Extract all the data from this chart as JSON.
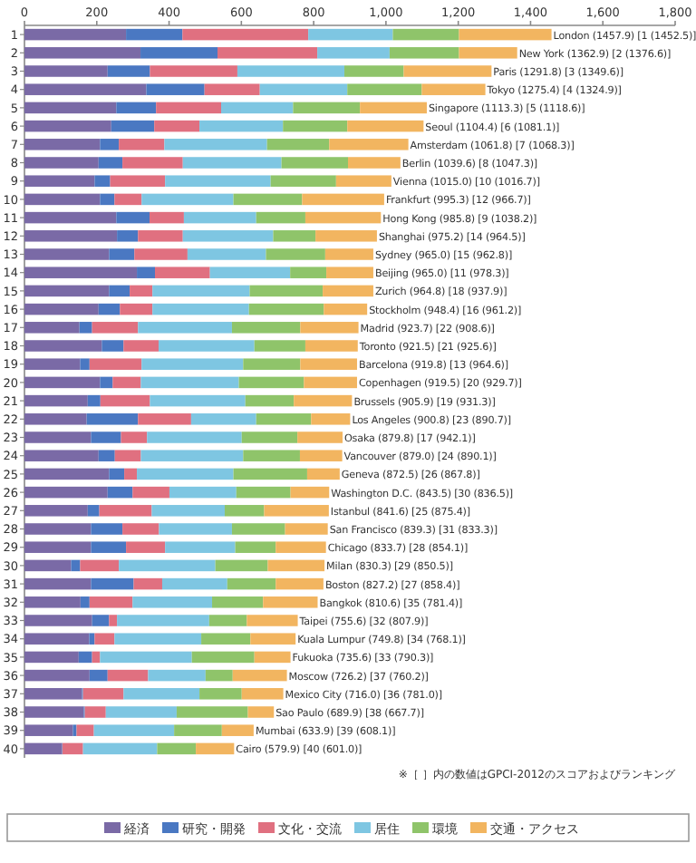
{
  "chart_data": {
    "type": "bar",
    "orientation": "horizontal",
    "stacked": true,
    "categories": [
      "1",
      "2",
      "3",
      "4",
      "5",
      "6",
      "7",
      "8",
      "9",
      "10",
      "11",
      "12",
      "13",
      "14",
      "15",
      "16",
      "17",
      "18",
      "19",
      "20",
      "21",
      "22",
      "23",
      "24",
      "25",
      "26",
      "27",
      "28",
      "29",
      "30",
      "31",
      "32",
      "33",
      "34",
      "35",
      "36",
      "37",
      "38",
      "39",
      "40"
    ],
    "series": [
      {
        "name": "経済",
        "color": "#7a6aa6",
        "values": [
          281,
          321,
          230,
          337,
          254,
          240,
          209,
          205,
          194,
          209,
          254,
          256,
          234,
          311,
          234,
          205,
          152,
          214,
          154,
          209,
          175,
          172,
          184,
          205,
          234,
          230,
          175,
          184,
          184,
          129,
          184,
          155,
          187,
          179,
          150,
          180,
          159,
          164,
          134,
          104
        ]
      },
      {
        "name": "研究・開発",
        "color": "#4a78c2",
        "values": [
          156,
          213,
          117,
          161,
          110,
          119,
          52,
          66,
          43,
          40,
          92,
          58,
          70,
          50,
          57,
          59,
          35,
          60,
          26,
          35,
          35,
          142,
          83,
          45,
          42,
          69,
          32,
          87,
          97,
          25,
          118,
          25,
          47,
          15,
          37,
          50,
          3,
          3,
          10,
          1
        ]
      },
      {
        "name": "文化・交流",
        "color": "#e07080",
        "values": [
          348,
          276,
          242,
          153,
          180,
          125,
          126,
          167,
          152,
          75,
          95,
          124,
          147,
          152,
          63,
          90,
          127,
          97,
          144,
          78,
          137,
          147,
          72,
          72,
          35,
          102,
          145,
          101,
          108,
          107,
          79,
          119,
          22,
          55,
          22,
          112,
          112,
          58,
          48,
          57
        ]
      },
      {
        "name": "居住",
        "color": "#7ec6e2",
        "values": [
          234,
          200,
          296,
          242,
          199,
          231,
          284,
          273,
          292,
          254,
          200,
          250,
          217,
          222,
          269,
          267,
          260,
          265,
          281,
          271,
          264,
          180,
          262,
          283,
          267,
          185,
          202,
          202,
          194,
          267,
          180,
          220,
          255,
          240,
          254,
          159,
          210,
          196,
          222,
          205
        ]
      },
      {
        "name": "環境",
        "color": "#8fc46a",
        "values": [
          183,
          192,
          164,
          206,
          185,
          178,
          172,
          184,
          181,
          190,
          136,
          117,
          164,
          100,
          202,
          207,
          189,
          141,
          158,
          180,
          134,
          152,
          154,
          157,
          204,
          150,
          109,
          147,
          112,
          145,
          134,
          141,
          104,
          136,
          173,
          75,
          117,
          197,
          132,
          107
        ]
      },
      {
        "name": "交通・アクセス",
        "color": "#f2b560",
        "values": [
          256,
          161,
          243,
          176,
          185,
          211,
          219,
          145,
          153,
          227,
          209,
          170,
          133,
          130,
          140,
          120,
          161,
          145,
          157,
          147,
          161,
          108,
          125,
          117,
          90,
          107,
          179,
          118,
          139,
          157,
          132,
          151,
          141,
          125,
          100,
          150,
          115,
          72,
          88,
          106
        ]
      }
    ],
    "totals": [
      "London (1457.9) [1 (1452.5)]",
      "New York (1362.9) [2 (1376.6)]",
      "Paris (1291.8) [3 (1349.6)]",
      "Tokyo (1275.4) [4 (1324.9)]",
      "Singapore (1113.3) [5 (1118.6)]",
      "Seoul (1104.4) [6 (1081.1)]",
      "Amsterdam (1061.8) [7 (1068.3)]",
      "Berlin (1039.6) [8 (1047.3)]",
      "Vienna (1015.0) [10 (1016.7)]",
      "Frankfurt (995.3) [12 (966.7)]",
      "Hong Kong (985.8) [9 (1038.2)]",
      "Shanghai (975.2) [14 (964.5)]",
      "Sydney (965.0) [15 (962.8)]",
      "Beijing (965.0) [11 (978.3)]",
      "Zurich (964.8) [18 (937.9)]",
      "Stockholm (948.4) [16 (961.2)]",
      "Madrid (923.7) [22 (908.6)]",
      "Toronto (921.5) [21 (925.6)]",
      "Barcelona (919.8) [13 (964.6)]",
      "Copenhagen (919.5) [20 (929.7)]",
      "Brussels (905.9) [19 (931.3)]",
      "Los Angeles (900.8) [23 (890.7)]",
      "Osaka (879.8) [17 (942.1)]",
      "Vancouver (879.0) [24 (890.1)]",
      "Geneva (872.5) [26 (867.8)]",
      "Washington D.C. (843.5) [30 (836.5)]",
      "Istanbul (841.6) [25 (875.4)]",
      "San Francisco (839.3) [31 (833.3)]",
      "Chicago (833.7) [28 (854.1)]",
      "Milan (830.3) [29 (850.5)]",
      "Boston (827.2) [27 (858.4)]",
      "Bangkok (810.6) [35 (781.4)]",
      "Taipei (755.6) [32 (807.9)]",
      "Kuala Lumpur (749.8) [34 (768.1)]",
      "Fukuoka (735.6) [33 (790.3)]",
      "Moscow (726.2) [37 (760.2)]",
      "Mexico City (716.0) [36 (781.0)]",
      "Sao Paulo (689.9) [38 (667.7)]",
      "Mumbai (633.9) [39 (608.1)]",
      "Cairo (579.9) [40 (601.0)]"
    ],
    "xlim": [
      0,
      1800
    ],
    "xticks": [
      0,
      200,
      400,
      600,
      800,
      {
        "value": 1000,
        "label": "1,000"
      },
      {
        "value": 1200,
        "label": "1,200"
      },
      {
        "value": 1400,
        "label": "1,400"
      },
      {
        "value": 1600,
        "label": "1,600"
      },
      {
        "value": 1800,
        "label": "1,800"
      }
    ],
    "legend": "bottom",
    "annotations": [
      "※［ ］内の数値はGPCI-2012のスコアおよびランキング"
    ]
  }
}
